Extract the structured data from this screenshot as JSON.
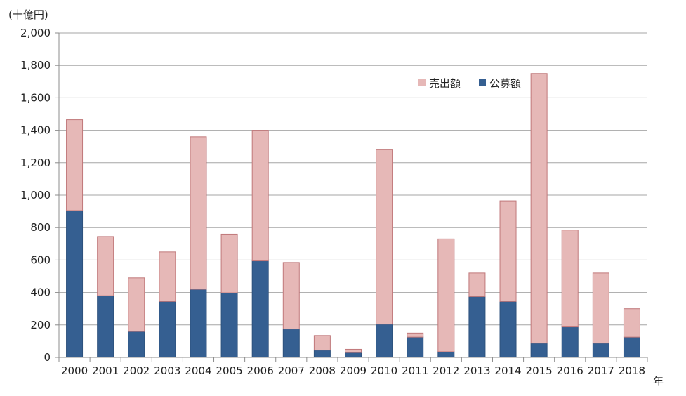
{
  "chart_data": {
    "type": "bar",
    "stacked": true,
    "ylabel": "(十億円)",
    "xlabel": "年",
    "ylim": [
      0,
      2000
    ],
    "yticks": [
      0,
      200,
      400,
      600,
      800,
      1000,
      1200,
      1400,
      1600,
      1800,
      2000
    ],
    "ytick_labels": [
      "0",
      "200",
      "400",
      "600",
      "800",
      "1,000",
      "1,200",
      "1,400",
      "1,600",
      "1,800",
      "2,000"
    ],
    "grid": true,
    "legend_position": "top-right",
    "categories": [
      "2000",
      "2001",
      "2002",
      "2003",
      "2004",
      "2005",
      "2006",
      "2007",
      "2008",
      "2009",
      "2010",
      "2011",
      "2012",
      "2013",
      "2014",
      "2015",
      "2016",
      "2017",
      "2018"
    ],
    "series": [
      {
        "name": "公募額",
        "color": "#355f91",
        "values": [
          905,
          380,
          160,
          345,
          420,
          398,
          595,
          175,
          45,
          30,
          205,
          125,
          35,
          375,
          345,
          88,
          188,
          88,
          125
        ]
      },
      {
        "name": "売出額",
        "color": "#e6b8b7",
        "values": [
          560,
          365,
          330,
          305,
          940,
          362,
          805,
          410,
          90,
          20,
          1078,
          25,
          695,
          145,
          620,
          1662,
          597,
          432,
          175
        ]
      }
    ],
    "legend_order": [
      "売出額",
      "公募額"
    ]
  }
}
